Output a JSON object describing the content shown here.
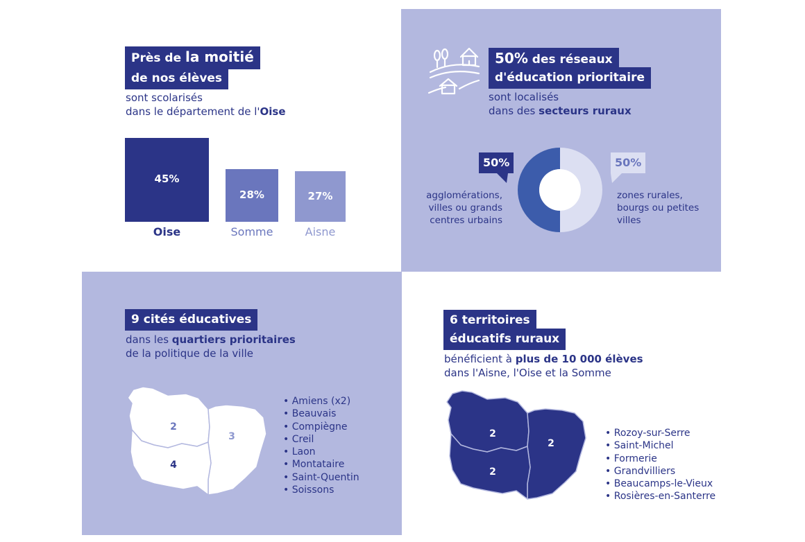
{
  "panel1": {
    "headline_l1_a": "Près de ",
    "headline_l1_b": "la moitié",
    "headline_l2": "de nos élèves",
    "sub_l1": "sont scolarisés",
    "sub_l2_a": "dans le département de l'",
    "sub_l2_b": "Oise"
  },
  "chart_data": [
    {
      "type": "bar",
      "categories": [
        "Oise",
        "Somme",
        "Aisne"
      ],
      "values": [
        45,
        28,
        27
      ],
      "value_labels": [
        "45%",
        "28%",
        "27%"
      ],
      "colors": [
        "#2b3487",
        "#6a76bd",
        "#8f98cf"
      ],
      "title": "",
      "xlabel": "",
      "ylabel": ""
    },
    {
      "type": "pie",
      "categories": [
        "agglomérations, villes ou grands centres urbains",
        "zones rurales, bourgs ou petites villes"
      ],
      "values": [
        50,
        50
      ],
      "value_labels": [
        "50%",
        "50%"
      ],
      "colors": [
        "#3c5cab",
        "#dcdff2"
      ],
      "title": ""
    }
  ],
  "panel2": {
    "icon": "rural-landscape-icon",
    "headline_l1_a": "50%",
    "headline_l1_b": " des réseaux",
    "headline_l2": "d'éducation prioritaire",
    "sub_l1": "sont localisés",
    "sub_l2_a": "dans des ",
    "sub_l2_b": "secteurs ruraux",
    "left_bubble": "50%",
    "left_label_l1": "agglomérations,",
    "left_label_l2": "villes ou grands",
    "left_label_l3": "centres urbains",
    "right_bubble": "50%",
    "right_label_l1": "zones rurales,",
    "right_label_l2": "bourgs ou petites",
    "right_label_l3": "villes"
  },
  "panel3": {
    "headline": "9 cités éducatives",
    "sub_l1_a": "dans les ",
    "sub_l1_b": "quartiers prioritaires",
    "sub_l2": "de la politique de la ville",
    "map_values": {
      "nw": "2",
      "e": "3",
      "sw": "4"
    },
    "cities": [
      "Amiens (x2)",
      "Beauvais",
      "Compiègne",
      "Creil",
      "Laon",
      "Montataire",
      "Saint-Quentin",
      "Soissons"
    ]
  },
  "panel4": {
    "headline_l1": "6 territoires",
    "headline_l2": "éducatifs ruraux",
    "sub_l1_a": "bénéficient à ",
    "sub_l1_b": "plus de 10 000 élèves",
    "sub_l2": "dans l'Aisne, l'Oise et la Somme",
    "map_values": {
      "nw": "2",
      "e": "2",
      "sw": "2"
    },
    "territories": [
      "Rozoy-sur-Serre",
      "Saint-Michel",
      "Formerie",
      "Grandvilliers",
      "Beaucamps-le-Vieux",
      "Rosières-en-Santerre"
    ]
  }
}
